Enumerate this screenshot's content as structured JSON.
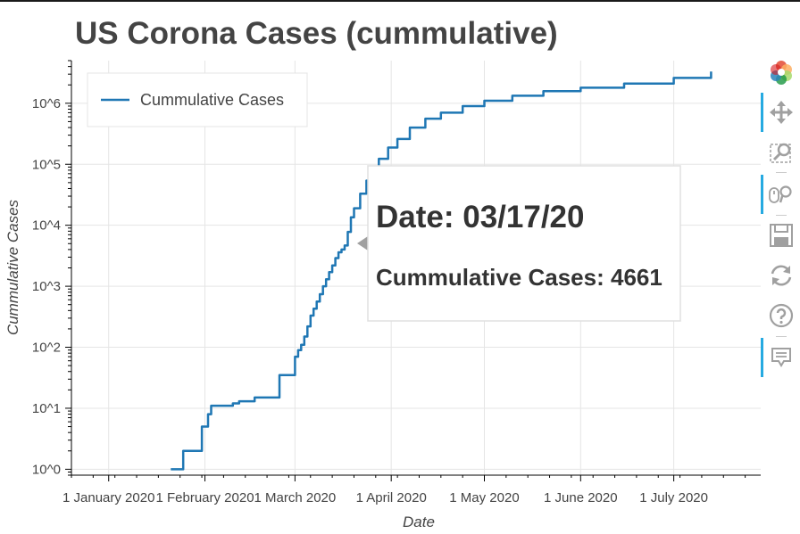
{
  "chart_data": {
    "type": "line",
    "title": "US Corona Cases (cummulative)",
    "xlabel": "Date",
    "ylabel": "Cummulative Cases",
    "y_scale": "log",
    "ylim": [
      0.8,
      5000000
    ],
    "xlim": [
      "2019-12-20",
      "2020-07-29"
    ],
    "x_ticks": [
      {
        "date": "2020-01-01",
        "label": "1 January 2020"
      },
      {
        "date": "2020-02-01",
        "label": "1 February 2020"
      },
      {
        "date": "2020-03-01",
        "label": "1 March 2020"
      },
      {
        "date": "2020-04-01",
        "label": "1 April 2020"
      },
      {
        "date": "2020-05-01",
        "label": "1 May 2020"
      },
      {
        "date": "2020-06-01",
        "label": "1 June 2020"
      },
      {
        "date": "2020-07-01",
        "label": "1 July 2020"
      }
    ],
    "y_ticks": [
      {
        "value": 1,
        "label": "10^0"
      },
      {
        "value": 10,
        "label": "10^1"
      },
      {
        "value": 100,
        "label": "10^2"
      },
      {
        "value": 1000,
        "label": "10^3"
      },
      {
        "value": 10000,
        "label": "10^4"
      },
      {
        "value": 100000,
        "label": "10^5"
      },
      {
        "value": 1000000,
        "label": "10^6"
      }
    ],
    "grid": true,
    "legend_position": "top-left",
    "series": [
      {
        "name": "Cummulative Cases",
        "color": "#1f77b4",
        "x": [
          "2020-01-21",
          "2020-01-24",
          "2020-01-25",
          "2020-01-26",
          "2020-01-31",
          "2020-02-02",
          "2020-02-03",
          "2020-02-05",
          "2020-02-10",
          "2020-02-12",
          "2020-02-17",
          "2020-02-20",
          "2020-02-21",
          "2020-02-24",
          "2020-02-25",
          "2020-02-26",
          "2020-02-28",
          "2020-03-01",
          "2020-03-02",
          "2020-03-03",
          "2020-03-04",
          "2020-03-05",
          "2020-03-06",
          "2020-03-07",
          "2020-03-08",
          "2020-03-09",
          "2020-03-10",
          "2020-03-11",
          "2020-03-12",
          "2020-03-13",
          "2020-03-14",
          "2020-03-15",
          "2020-03-16",
          "2020-03-17",
          "2020-03-18",
          "2020-03-19",
          "2020-03-20",
          "2020-03-22",
          "2020-03-24",
          "2020-03-26",
          "2020-03-28",
          "2020-03-31",
          "2020-04-03",
          "2020-04-07",
          "2020-04-12",
          "2020-04-17",
          "2020-04-24",
          "2020-05-01",
          "2020-05-10",
          "2020-05-20",
          "2020-06-01",
          "2020-06-15",
          "2020-07-01",
          "2020-07-13"
        ],
        "y": [
          1,
          1,
          2,
          2,
          5,
          8,
          11,
          11,
          12,
          13,
          15,
          15,
          15,
          15,
          35,
          35,
          35,
          70,
          90,
          110,
          150,
          220,
          330,
          430,
          560,
          740,
          1000,
          1300,
          1700,
          2200,
          2900,
          3600,
          4000,
          4661,
          7800,
          13500,
          19000,
          33000,
          54000,
          84000,
          123000,
          188000,
          260000,
          400000,
          560000,
          700000,
          900000,
          1100000,
          1330000,
          1580000,
          1800000,
          2100000,
          2600000,
          3300000
        ]
      }
    ],
    "tooltip": {
      "date_label": "Date: 03/17/20",
      "value_label": "Cummulative Cases: 4661",
      "point": {
        "x": "2020-03-17",
        "y": 4661
      }
    }
  },
  "legend": {
    "label": "Cummulative Cases"
  },
  "toolbar": {
    "tools": [
      {
        "icon": "bokeh-logo-icon",
        "label": "Bokeh"
      },
      {
        "icon": "pan-icon",
        "label": "Pan",
        "active": true
      },
      {
        "icon": "box-zoom-icon",
        "label": "Box Zoom"
      },
      {
        "icon": "wheel-zoom-icon",
        "label": "Wheel Zoom",
        "active": true
      },
      {
        "icon": "save-icon",
        "label": "Save"
      },
      {
        "icon": "reset-icon",
        "label": "Reset"
      },
      {
        "icon": "help-icon",
        "label": "Help"
      },
      {
        "icon": "hover-icon",
        "label": "Hover",
        "active": true
      }
    ]
  }
}
